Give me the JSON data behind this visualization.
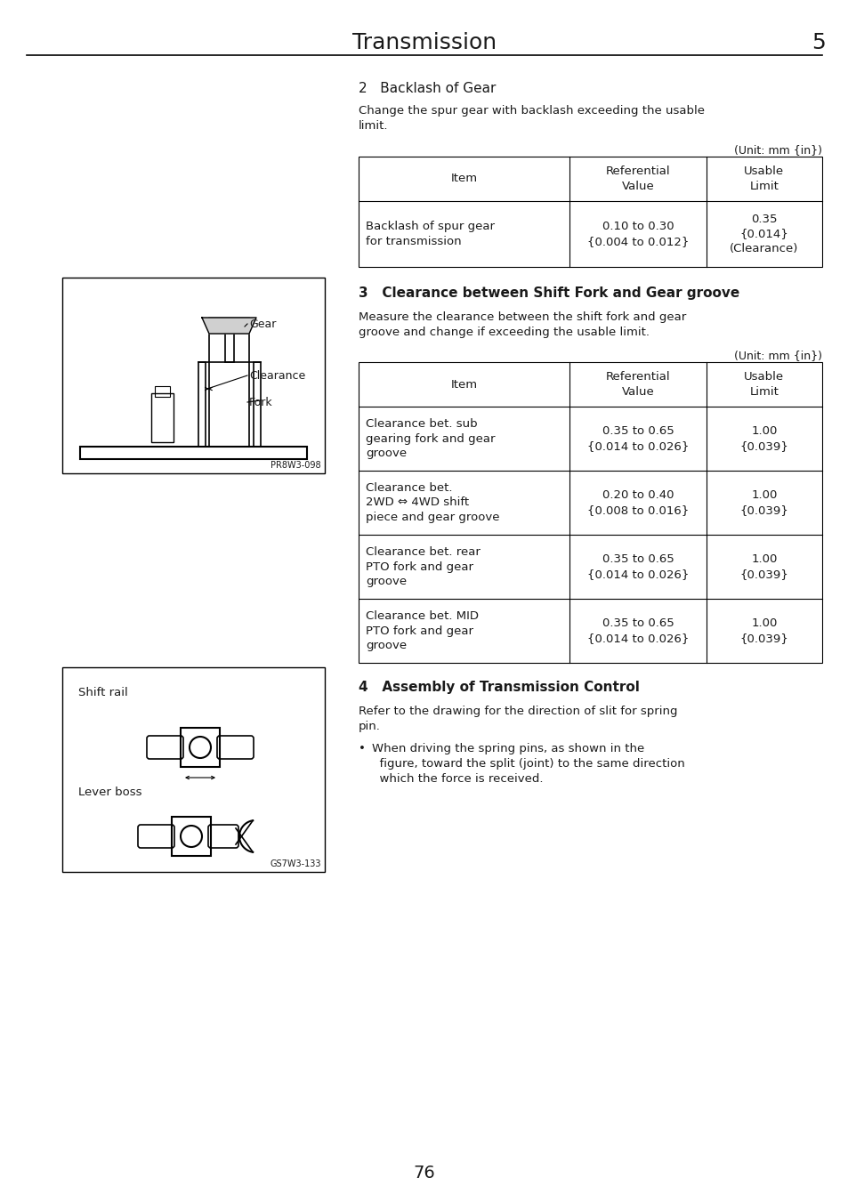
{
  "page_title": "Transmission",
  "page_number": "5",
  "page_footer": "76",
  "bg_color": "#ffffff",
  "text_color": "#1a1a1a",
  "section2_heading": "2   Backlash of Gear",
  "section2_body": "Change the spur gear with backlash exceeding the usable\nlimit.",
  "unit_note1": "(Unit: mm {in})",
  "table1_headers": [
    "Item",
    "Referential\nValue",
    "Usable\nLimit"
  ],
  "table1_rows": [
    [
      "Backlash of spur gear\nfor transmission",
      "0.10 to 0.30\n{0.004 to 0.012}",
      "0.35\n{0.014}\n(Clearance)"
    ]
  ],
  "section3_heading": "3   Clearance between Shift Fork and Gear groove",
  "section3_body": "Measure the clearance between the shift fork and gear\ngroove and change if exceeding the usable limit.",
  "unit_note2": "(Unit: mm {in})",
  "table2_headers": [
    "Item",
    "Referential\nValue",
    "Usable\nLimit"
  ],
  "table2_rows": [
    [
      "Clearance bet. sub\ngearing fork and gear\ngroove",
      "0.35 to 0.65\n{0.014 to 0.026}",
      "1.00\n{0.039}"
    ],
    [
      "Clearance bet.\n2WD ⇔ 4WD shift\npiece and gear groove",
      "0.20 to 0.40\n{0.008 to 0.016}",
      "1.00\n{0.039}"
    ],
    [
      "Clearance bet. rear\nPTO fork and gear\ngroove",
      "0.35 to 0.65\n{0.014 to 0.026}",
      "1.00\n{0.039}"
    ],
    [
      "Clearance bet. MID\nPTO fork and gear\ngroove",
      "0.35 to 0.65\n{0.014 to 0.026}",
      "1.00\n{0.039}"
    ]
  ],
  "section4_heading": "4   Assembly of Transmission Control",
  "section4_body": "Refer to the drawing for the direction of slit for spring\npin.",
  "section4_bullet": "When driving the spring pins, as shown in the\n  figure, toward the split (joint) to the same direction\n  which the force is received.",
  "diagram1_label_gear": "Gear",
  "diagram1_label_clearance": "Clearance",
  "diagram1_label_fork": "Fork",
  "diagram1_code": "PR8W3-098",
  "diagram2_label_shift_rail": "Shift rail",
  "diagram2_label_lever_boss": "Lever boss",
  "diagram2_code": "GS7W3-133"
}
